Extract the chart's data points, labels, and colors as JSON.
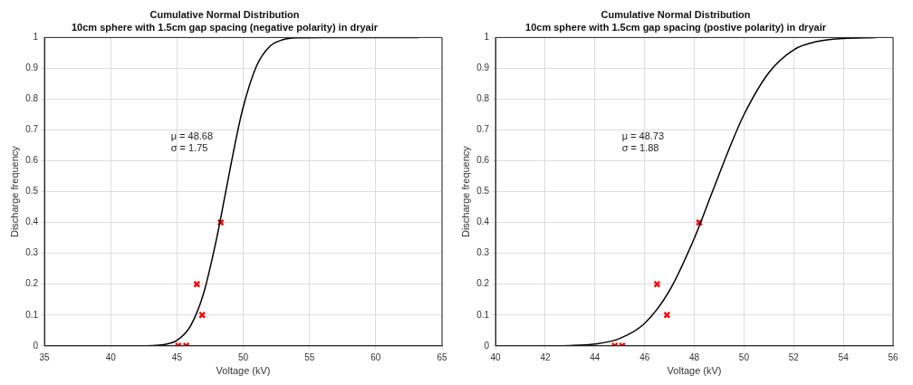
{
  "chart_data": [
    {
      "type": "line",
      "title": "Cumulative Normal Distribution",
      "subtitle": "10cm sphere with 1.5cm gap spacing (negative polarity) in dryair",
      "xlabel": "Voltage (kV)",
      "ylabel": "Discharge frequency",
      "annotations": [
        "μ = 48.68",
        "σ = 1.75"
      ],
      "xlim": [
        35,
        65
      ],
      "xticks": [
        35,
        40,
        45,
        50,
        55,
        60,
        65
      ],
      "ylim": [
        0,
        1
      ],
      "yticks": [
        0,
        0.1,
        0.2,
        0.3,
        0.4,
        0.5,
        0.6,
        0.7,
        0.8,
        0.9,
        1
      ],
      "grid": true,
      "legend": false,
      "series": [
        {
          "color": "#000000",
          "marker": "none",
          "x": [
            35.3,
            42,
            44,
            45,
            46,
            47,
            48,
            48.68,
            49.5,
            50,
            51,
            52,
            53,
            54,
            56,
            63.2
          ],
          "values": [
            0,
            0,
            0.004,
            0.018,
            0.063,
            0.169,
            0.35,
            0.5,
            0.68,
            0.775,
            0.907,
            0.971,
            0.993,
            0.999,
            1,
            1
          ]
        },
        {
          "type": "scatter",
          "color": "#ff0000",
          "marker": "cross",
          "x": [
            45.1,
            45.7,
            46.5,
            46.9,
            48.3
          ],
          "values": [
            0,
            0,
            0.2,
            0.1,
            0.4
          ]
        }
      ]
    },
    {
      "type": "line",
      "title": "Cumulative Normal Distribution",
      "subtitle": "10cm sphere with 1.5cm gap spacing (postive polarity) in dryair",
      "xlabel": "Voltage (kV)",
      "ylabel": "Discharge frequency",
      "annotations": [
        "μ = 48.73",
        "σ = 1.88"
      ],
      "xlim": [
        40,
        56
      ],
      "xticks": [
        40,
        42,
        44,
        46,
        48,
        50,
        52,
        54,
        56
      ],
      "ylim": [
        0,
        1
      ],
      "yticks": [
        0,
        0.1,
        0.2,
        0.3,
        0.4,
        0.5,
        0.6,
        0.7,
        0.8,
        0.9,
        1
      ],
      "grid": true,
      "legend": false,
      "series": [
        {
          "color": "#000000",
          "marker": "none",
          "x": [
            41.8,
            43,
            44,
            45,
            46,
            47,
            48,
            48.73,
            49.5,
            50,
            51,
            52,
            53,
            54,
            55.3
          ],
          "values": [
            0,
            0.001,
            0.006,
            0.024,
            0.073,
            0.179,
            0.349,
            0.5,
            0.658,
            0.75,
            0.886,
            0.96,
            0.988,
            0.997,
            1
          ]
        },
        {
          "type": "scatter",
          "color": "#ff0000",
          "marker": "cross",
          "x": [
            44.8,
            45.1,
            46.5,
            46.9,
            48.2
          ],
          "values": [
            0,
            0,
            0.2,
            0.1,
            0.4
          ]
        }
      ]
    }
  ]
}
